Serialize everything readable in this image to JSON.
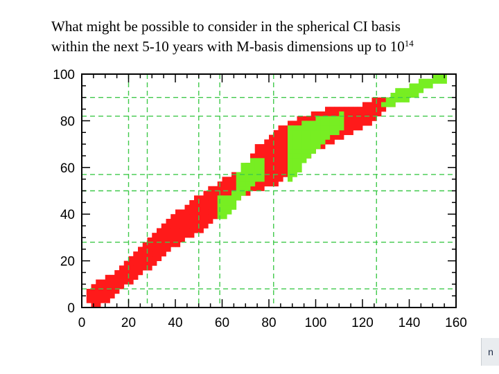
{
  "slide": {
    "title_line1": "What might be possible to consider in the spherical CI basis",
    "title_line2_prefix": "within the next 5-10 years with M-basis dimensions up to 10",
    "title_line2_sup": "14",
    "corner_tab_text": "n"
  },
  "colors": {
    "red": "#ff1a1a",
    "green": "#77ee22",
    "gridline": "#3fc94a",
    "axis": "#000000"
  },
  "chart_data": {
    "type": "heatmap",
    "title": "",
    "xlabel": "",
    "ylabel": "",
    "xlim": [
      0,
      160
    ],
    "ylim": [
      0,
      100
    ],
    "x_ticks": [
      "0",
      "20",
      "40",
      "60",
      "80",
      "100",
      "120",
      "140",
      "160"
    ],
    "y_ticks": [
      "0",
      "20",
      "40",
      "60",
      "80",
      "100"
    ],
    "grid": true,
    "vertical_gridlines_x": [
      20,
      28,
      50,
      59,
      82,
      126
    ],
    "horizontal_gridlines_y": [
      8,
      28,
      50,
      57,
      82,
      90
    ],
    "cell_size": 2,
    "regions": [
      {
        "color": "red",
        "upper_boundary": [
          [
            1,
            5
          ],
          [
            5,
            10
          ],
          [
            10,
            13
          ],
          [
            15,
            16
          ],
          [
            20,
            22
          ],
          [
            25,
            26
          ],
          [
            30,
            31
          ],
          [
            35,
            35
          ],
          [
            40,
            41
          ],
          [
            45,
            44
          ],
          [
            50,
            48
          ],
          [
            55,
            51
          ],
          [
            60,
            55
          ],
          [
            65,
            57
          ],
          [
            70,
            59
          ],
          [
            75,
            69
          ],
          [
            80,
            73
          ],
          [
            85,
            77
          ],
          [
            90,
            80
          ],
          [
            95,
            82
          ],
          [
            100,
            84
          ],
          [
            110,
            86
          ],
          [
            120,
            87
          ],
          [
            126,
            90
          ],
          [
            132,
            90
          ]
        ],
        "lower_boundary": [
          [
            1,
            3
          ],
          [
            5,
            1
          ],
          [
            10,
            3
          ],
          [
            15,
            6
          ],
          [
            20,
            11
          ],
          [
            25,
            15
          ],
          [
            30,
            18
          ],
          [
            35,
            22
          ],
          [
            40,
            27
          ],
          [
            45,
            31
          ],
          [
            50,
            33
          ],
          [
            55,
            37
          ],
          [
            60,
            42
          ],
          [
            65,
            46
          ],
          [
            70,
            49
          ],
          [
            75,
            51
          ],
          [
            80,
            53
          ],
          [
            85,
            54
          ],
          [
            90,
            59
          ],
          [
            95,
            64
          ],
          [
            100,
            68
          ],
          [
            110,
            73
          ],
          [
            120,
            78
          ],
          [
            125,
            80
          ],
          [
            130,
            85
          ],
          [
            132,
            87
          ]
        ]
      },
      {
        "color": "green",
        "upper_boundary": [
          [
            58,
            47
          ],
          [
            62,
            48
          ],
          [
            65,
            50
          ],
          [
            68,
            62
          ],
          [
            72,
            63
          ],
          [
            76,
            63
          ]
        ],
        "lower_boundary": [
          [
            58,
            38
          ],
          [
            62,
            40
          ],
          [
            65,
            43
          ],
          [
            68,
            48
          ],
          [
            72,
            53
          ],
          [
            76,
            55
          ]
        ]
      },
      {
        "color": "green",
        "upper_boundary": [
          [
            87,
            78
          ],
          [
            90,
            78
          ],
          [
            95,
            79
          ],
          [
            100,
            81
          ],
          [
            105,
            82
          ],
          [
            110,
            83
          ]
        ],
        "lower_boundary": [
          [
            87,
            54
          ],
          [
            90,
            56
          ],
          [
            95,
            62
          ],
          [
            100,
            68
          ],
          [
            105,
            73
          ],
          [
            110,
            76
          ]
        ]
      },
      {
        "color": "green",
        "upper_boundary": [
          [
            128,
            88
          ],
          [
            135,
            93
          ],
          [
            140,
            95
          ],
          [
            145,
            97
          ],
          [
            150,
            99
          ],
          [
            155,
            99
          ]
        ],
        "lower_boundary": [
          [
            128,
            86
          ],
          [
            135,
            88
          ],
          [
            140,
            90
          ],
          [
            145,
            93
          ],
          [
            150,
            96
          ],
          [
            155,
            97
          ]
        ]
      }
    ]
  }
}
